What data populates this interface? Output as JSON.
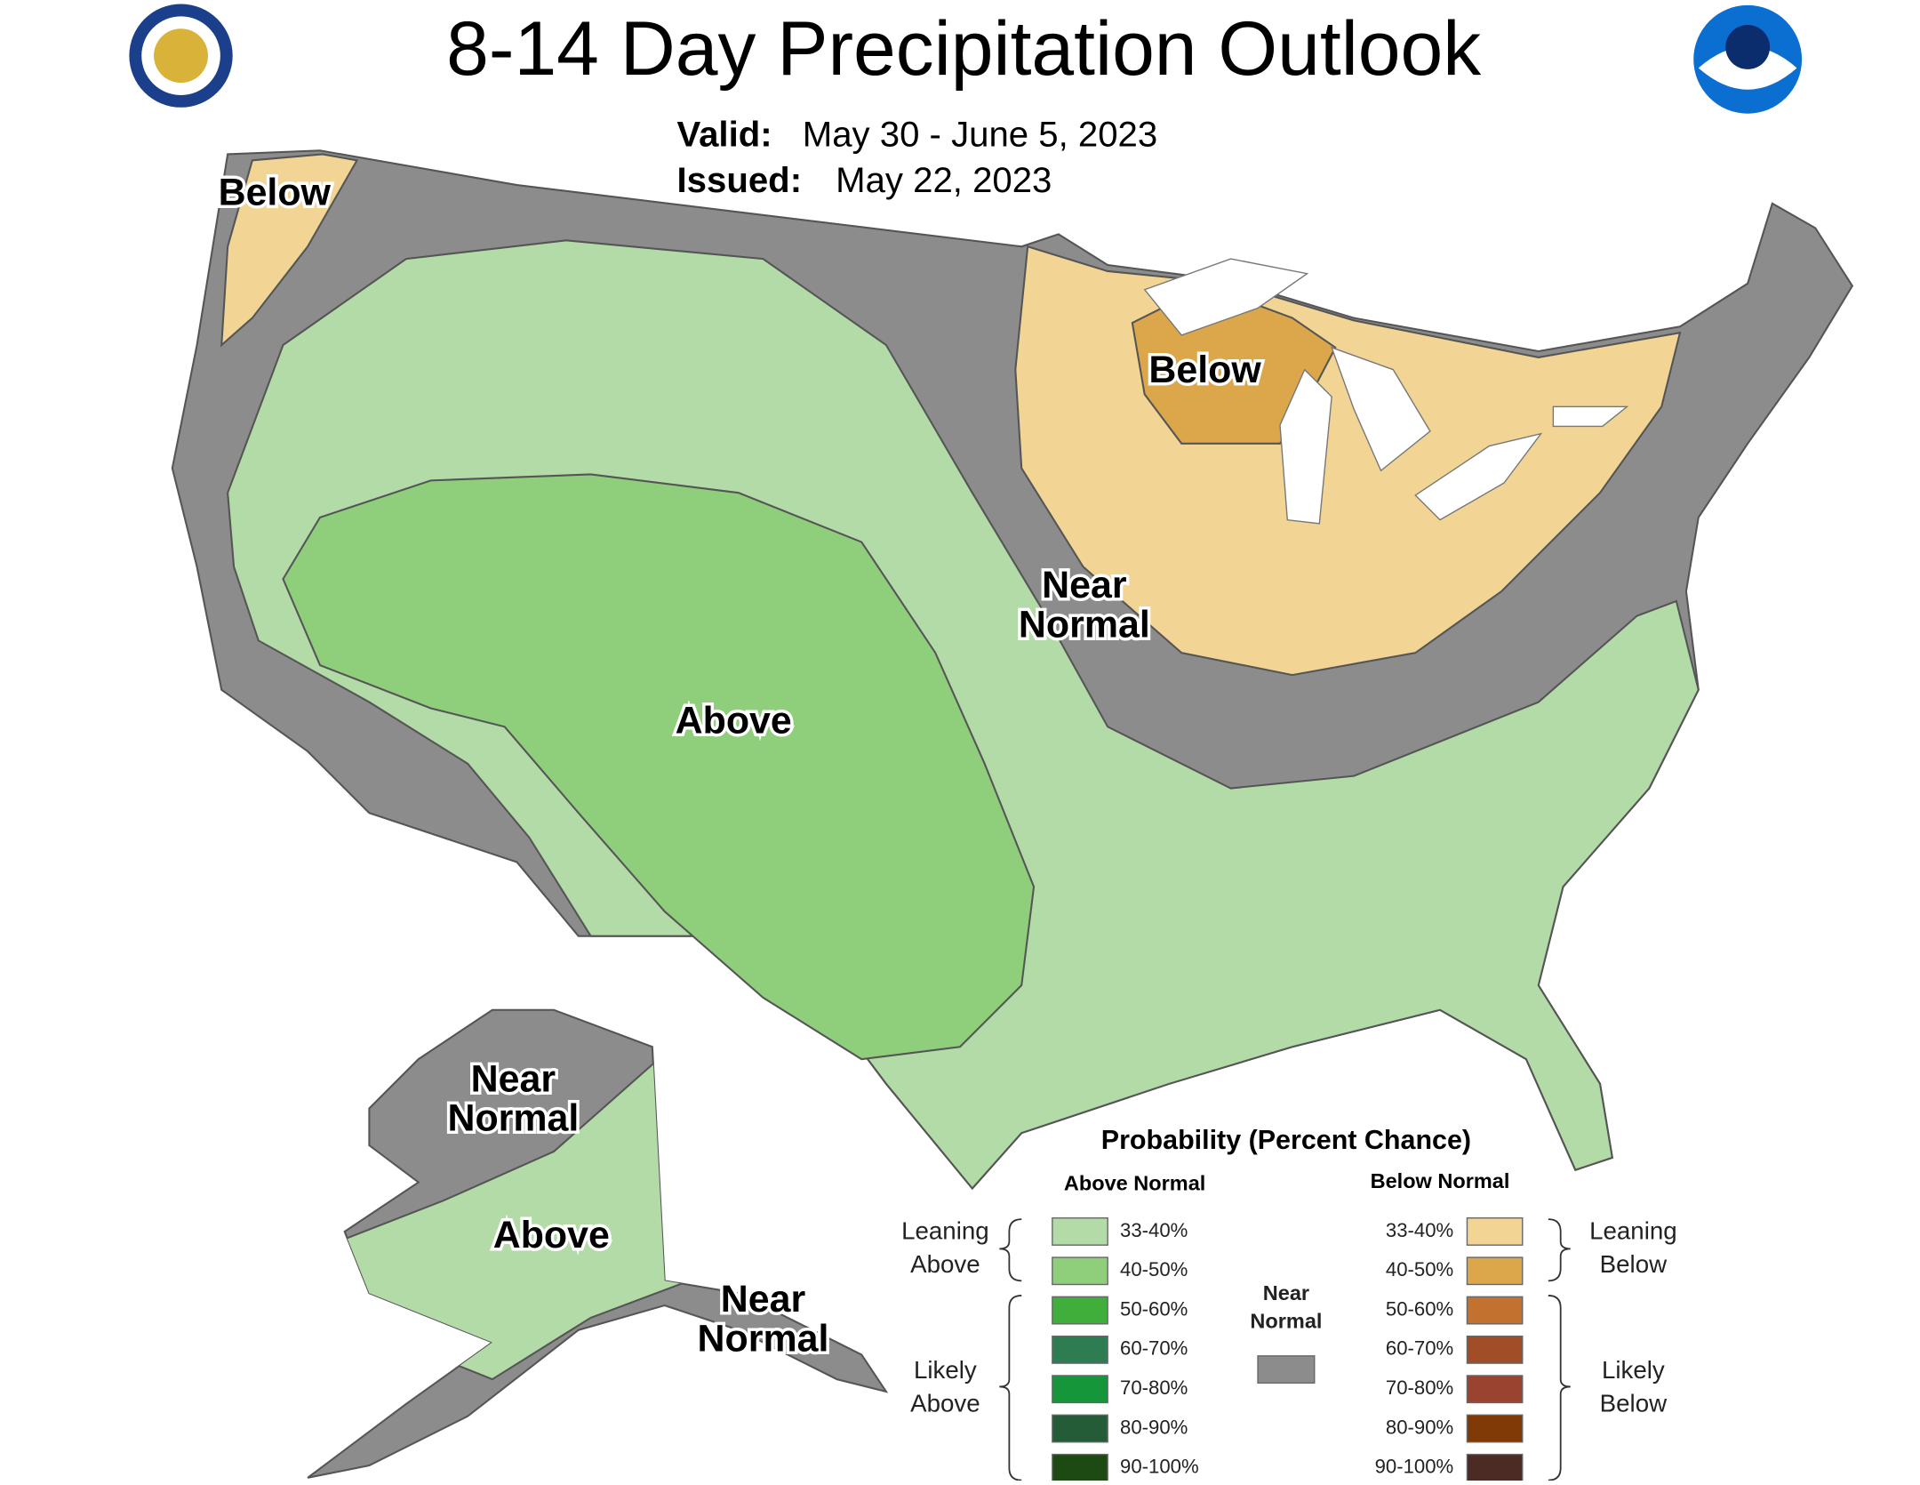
{
  "header": {
    "title": "8-14 Day Precipitation Outlook",
    "valid_label": "Valid:",
    "valid": "May 30 - June 5, 2023",
    "issued_label": "Issued:",
    "issued": "May 22, 2023"
  },
  "map_labels": [
    [
      "Below"
    ],
    [
      "Below"
    ],
    [
      "Near",
      "Normal"
    ],
    [
      "Above"
    ],
    [
      "Near",
      "Normal"
    ],
    [
      "Above"
    ],
    [
      "Near",
      "Normal"
    ]
  ],
  "legend": {
    "title": "Probability (Percent Chance)",
    "above_header": "Above Normal",
    "below_header": "Below Normal",
    "near_normal": [
      "Near",
      "Normal"
    ],
    "near_color": "#8c8c8c",
    "leaning_above": [
      "Leaning",
      "Above"
    ],
    "likely_above": [
      "Likely",
      "Above"
    ],
    "leaning_below": [
      "Leaning",
      "Below"
    ],
    "likely_below": [
      "Likely",
      "Below"
    ],
    "above_items": [
      {
        "label": "33-40%",
        "color": "#b3dba8"
      },
      {
        "label": "40-50%",
        "color": "#8fcf7c"
      },
      {
        "label": "50-60%",
        "color": "#3fae3b"
      },
      {
        "label": "60-70%",
        "color": "#2e7d52"
      },
      {
        "label": "70-80%",
        "color": "#16963a"
      },
      {
        "label": "80-90%",
        "color": "#245c38"
      },
      {
        "label": "90-100%",
        "color": "#1d4a12"
      }
    ],
    "below_items": [
      {
        "label": "33-40%",
        "color": "#f2d595"
      },
      {
        "label": "40-50%",
        "color": "#dca64a"
      },
      {
        "label": "50-60%",
        "color": "#c3712e"
      },
      {
        "label": "60-70%",
        "color": "#a14d28"
      },
      {
        "label": "70-80%",
        "color": "#9a4330"
      },
      {
        "label": "80-90%",
        "color": "#7f3a05"
      },
      {
        "label": "90-100%",
        "color": "#4c2b25"
      }
    ]
  }
}
